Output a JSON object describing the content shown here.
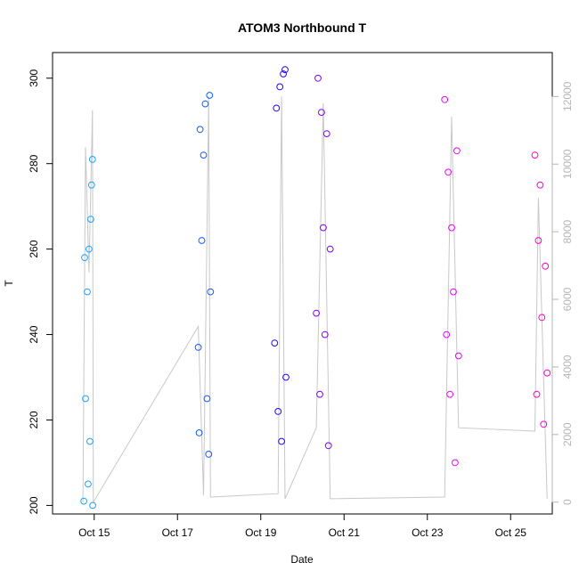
{
  "chart_data": {
    "type": "scatter",
    "title": "ATOM3 Northbound T",
    "xlabel": "Date",
    "ylabel": "T",
    "xlim": [
      "2023-10-14",
      "2023-10-26"
    ],
    "ylim": [
      198,
      306
    ],
    "x_ticks": [
      {
        "label": "Oct 15",
        "date": "2023-10-15"
      },
      {
        "label": "Oct 17",
        "date": "2023-10-17"
      },
      {
        "label": "Oct 19",
        "date": "2023-10-19"
      },
      {
        "label": "Oct 21",
        "date": "2023-10-21"
      },
      {
        "label": "Oct 23",
        "date": "2023-10-23"
      },
      {
        "label": "Oct 25",
        "date": "2023-10-25"
      }
    ],
    "y_ticks": [
      200,
      220,
      240,
      260,
      280,
      300
    ],
    "y2_lim": [
      -350,
      13300
    ],
    "y2_ticks": [
      0,
      2000,
      4000,
      6000,
      8000,
      10000,
      12000
    ],
    "grid": false,
    "legend": "none",
    "colors": {
      "secondary_line": "#c8c8c8",
      "secondary_axis": "#b5b5b5"
    },
    "series": [
      {
        "color": "#1aa3ff",
        "points": [
          {
            "x": "2023-10-14 18:00",
            "y": 201
          },
          {
            "x": "2023-10-14 18:30",
            "y": 258
          },
          {
            "x": "2023-10-14 19:00",
            "y": 225
          },
          {
            "x": "2023-10-14 20:00",
            "y": 250
          },
          {
            "x": "2023-10-14 20:30",
            "y": 205
          },
          {
            "x": "2023-10-14 21:00",
            "y": 260
          },
          {
            "x": "2023-10-14 21:30",
            "y": 215
          },
          {
            "x": "2023-10-14 22:00",
            "y": 267
          },
          {
            "x": "2023-10-14 22:30",
            "y": 275
          },
          {
            "x": "2023-10-14 23:00",
            "y": 281
          },
          {
            "x": "2023-10-14 23:10",
            "y": 200
          }
        ]
      },
      {
        "color": "#0f5bff",
        "points": [
          {
            "x": "2023-10-17 12:00",
            "y": 237
          },
          {
            "x": "2023-10-17 12:30",
            "y": 217
          },
          {
            "x": "2023-10-17 13:00",
            "y": 288
          },
          {
            "x": "2023-10-17 14:00",
            "y": 262
          },
          {
            "x": "2023-10-17 15:00",
            "y": 282
          },
          {
            "x": "2023-10-17 16:00",
            "y": 294
          },
          {
            "x": "2023-10-17 17:00",
            "y": 225
          },
          {
            "x": "2023-10-17 18:00",
            "y": 212
          },
          {
            "x": "2023-10-17 18:30",
            "y": 296
          },
          {
            "x": "2023-10-17 19:00",
            "y": 250
          }
        ]
      },
      {
        "color": "#2a00ff",
        "points": [
          {
            "x": "2023-10-19 08:00",
            "y": 238
          },
          {
            "x": "2023-10-19 09:00",
            "y": 293
          },
          {
            "x": "2023-10-19 10:00",
            "y": 222
          },
          {
            "x": "2023-10-19 11:00",
            "y": 298
          },
          {
            "x": "2023-10-19 12:00",
            "y": 215
          },
          {
            "x": "2023-10-19 13:00",
            "y": 301
          },
          {
            "x": "2023-10-19 14:00",
            "y": 302
          },
          {
            "x": "2023-10-19 14:30",
            "y": 230
          }
        ]
      },
      {
        "color": "#7f00ff",
        "points": [
          {
            "x": "2023-10-20 08:00",
            "y": 245
          },
          {
            "x": "2023-10-20 09:00",
            "y": 300
          },
          {
            "x": "2023-10-20 10:00",
            "y": 226
          },
          {
            "x": "2023-10-20 11:00",
            "y": 292
          },
          {
            "x": "2023-10-20 12:00",
            "y": 265
          },
          {
            "x": "2023-10-20 13:00",
            "y": 240
          },
          {
            "x": "2023-10-20 14:00",
            "y": 287
          },
          {
            "x": "2023-10-20 15:00",
            "y": 214
          },
          {
            "x": "2023-10-20 16:00",
            "y": 260
          }
        ]
      },
      {
        "color": "#ee00ff",
        "points": [
          {
            "x": "2023-10-23 10:00",
            "y": 295
          },
          {
            "x": "2023-10-23 11:00",
            "y": 240
          },
          {
            "x": "2023-10-23 12:00",
            "y": 278
          },
          {
            "x": "2023-10-23 13:00",
            "y": 226
          },
          {
            "x": "2023-10-23 14:00",
            "y": 265
          },
          {
            "x": "2023-10-23 15:00",
            "y": 250
          },
          {
            "x": "2023-10-23 16:00",
            "y": 210
          },
          {
            "x": "2023-10-23 17:00",
            "y": 283
          },
          {
            "x": "2023-10-23 18:00",
            "y": 235
          }
        ]
      },
      {
        "color": "#ff00cc",
        "points": [
          {
            "x": "2023-10-25 14:00",
            "y": 282
          },
          {
            "x": "2023-10-25 15:00",
            "y": 226
          },
          {
            "x": "2023-10-25 16:00",
            "y": 262
          },
          {
            "x": "2023-10-25 17:00",
            "y": 275
          },
          {
            "x": "2023-10-25 18:00",
            "y": 244
          },
          {
            "x": "2023-10-25 19:00",
            "y": 219
          },
          {
            "x": "2023-10-25 20:00",
            "y": 256
          },
          {
            "x": "2023-10-25 21:00",
            "y": 231
          }
        ]
      }
    ],
    "secondary_series": {
      "color": "#c8c8c8",
      "points": [
        {
          "x": "2023-10-14 17:30",
          "y": 0
        },
        {
          "x": "2023-10-14 19:00",
          "y": 10500
        },
        {
          "x": "2023-10-14 21:00",
          "y": 6800
        },
        {
          "x": "2023-10-14 23:00",
          "y": 11600
        },
        {
          "x": "2023-10-14 23:30",
          "y": 0
        },
        {
          "x": "2023-10-17 12:00",
          "y": 5200
        },
        {
          "x": "2023-10-17 15:00",
          "y": 200
        },
        {
          "x": "2023-10-17 18:00",
          "y": 12000
        },
        {
          "x": "2023-10-17 19:00",
          "y": 150
        },
        {
          "x": "2023-10-19 10:00",
          "y": 250
        },
        {
          "x": "2023-10-19 12:00",
          "y": 12000
        },
        {
          "x": "2023-10-19 14:00",
          "y": 100
        },
        {
          "x": "2023-10-20 08:00",
          "y": 2200
        },
        {
          "x": "2023-10-20 12:00",
          "y": 11800
        },
        {
          "x": "2023-10-20 16:00",
          "y": 100
        },
        {
          "x": "2023-10-23 10:00",
          "y": 150
        },
        {
          "x": "2023-10-23 14:00",
          "y": 11400
        },
        {
          "x": "2023-10-23 18:00",
          "y": 2200
        },
        {
          "x": "2023-10-25 14:00",
          "y": 2100
        },
        {
          "x": "2023-10-25 16:00",
          "y": 9000
        },
        {
          "x": "2023-10-25 21:00",
          "y": 100
        }
      ]
    }
  }
}
